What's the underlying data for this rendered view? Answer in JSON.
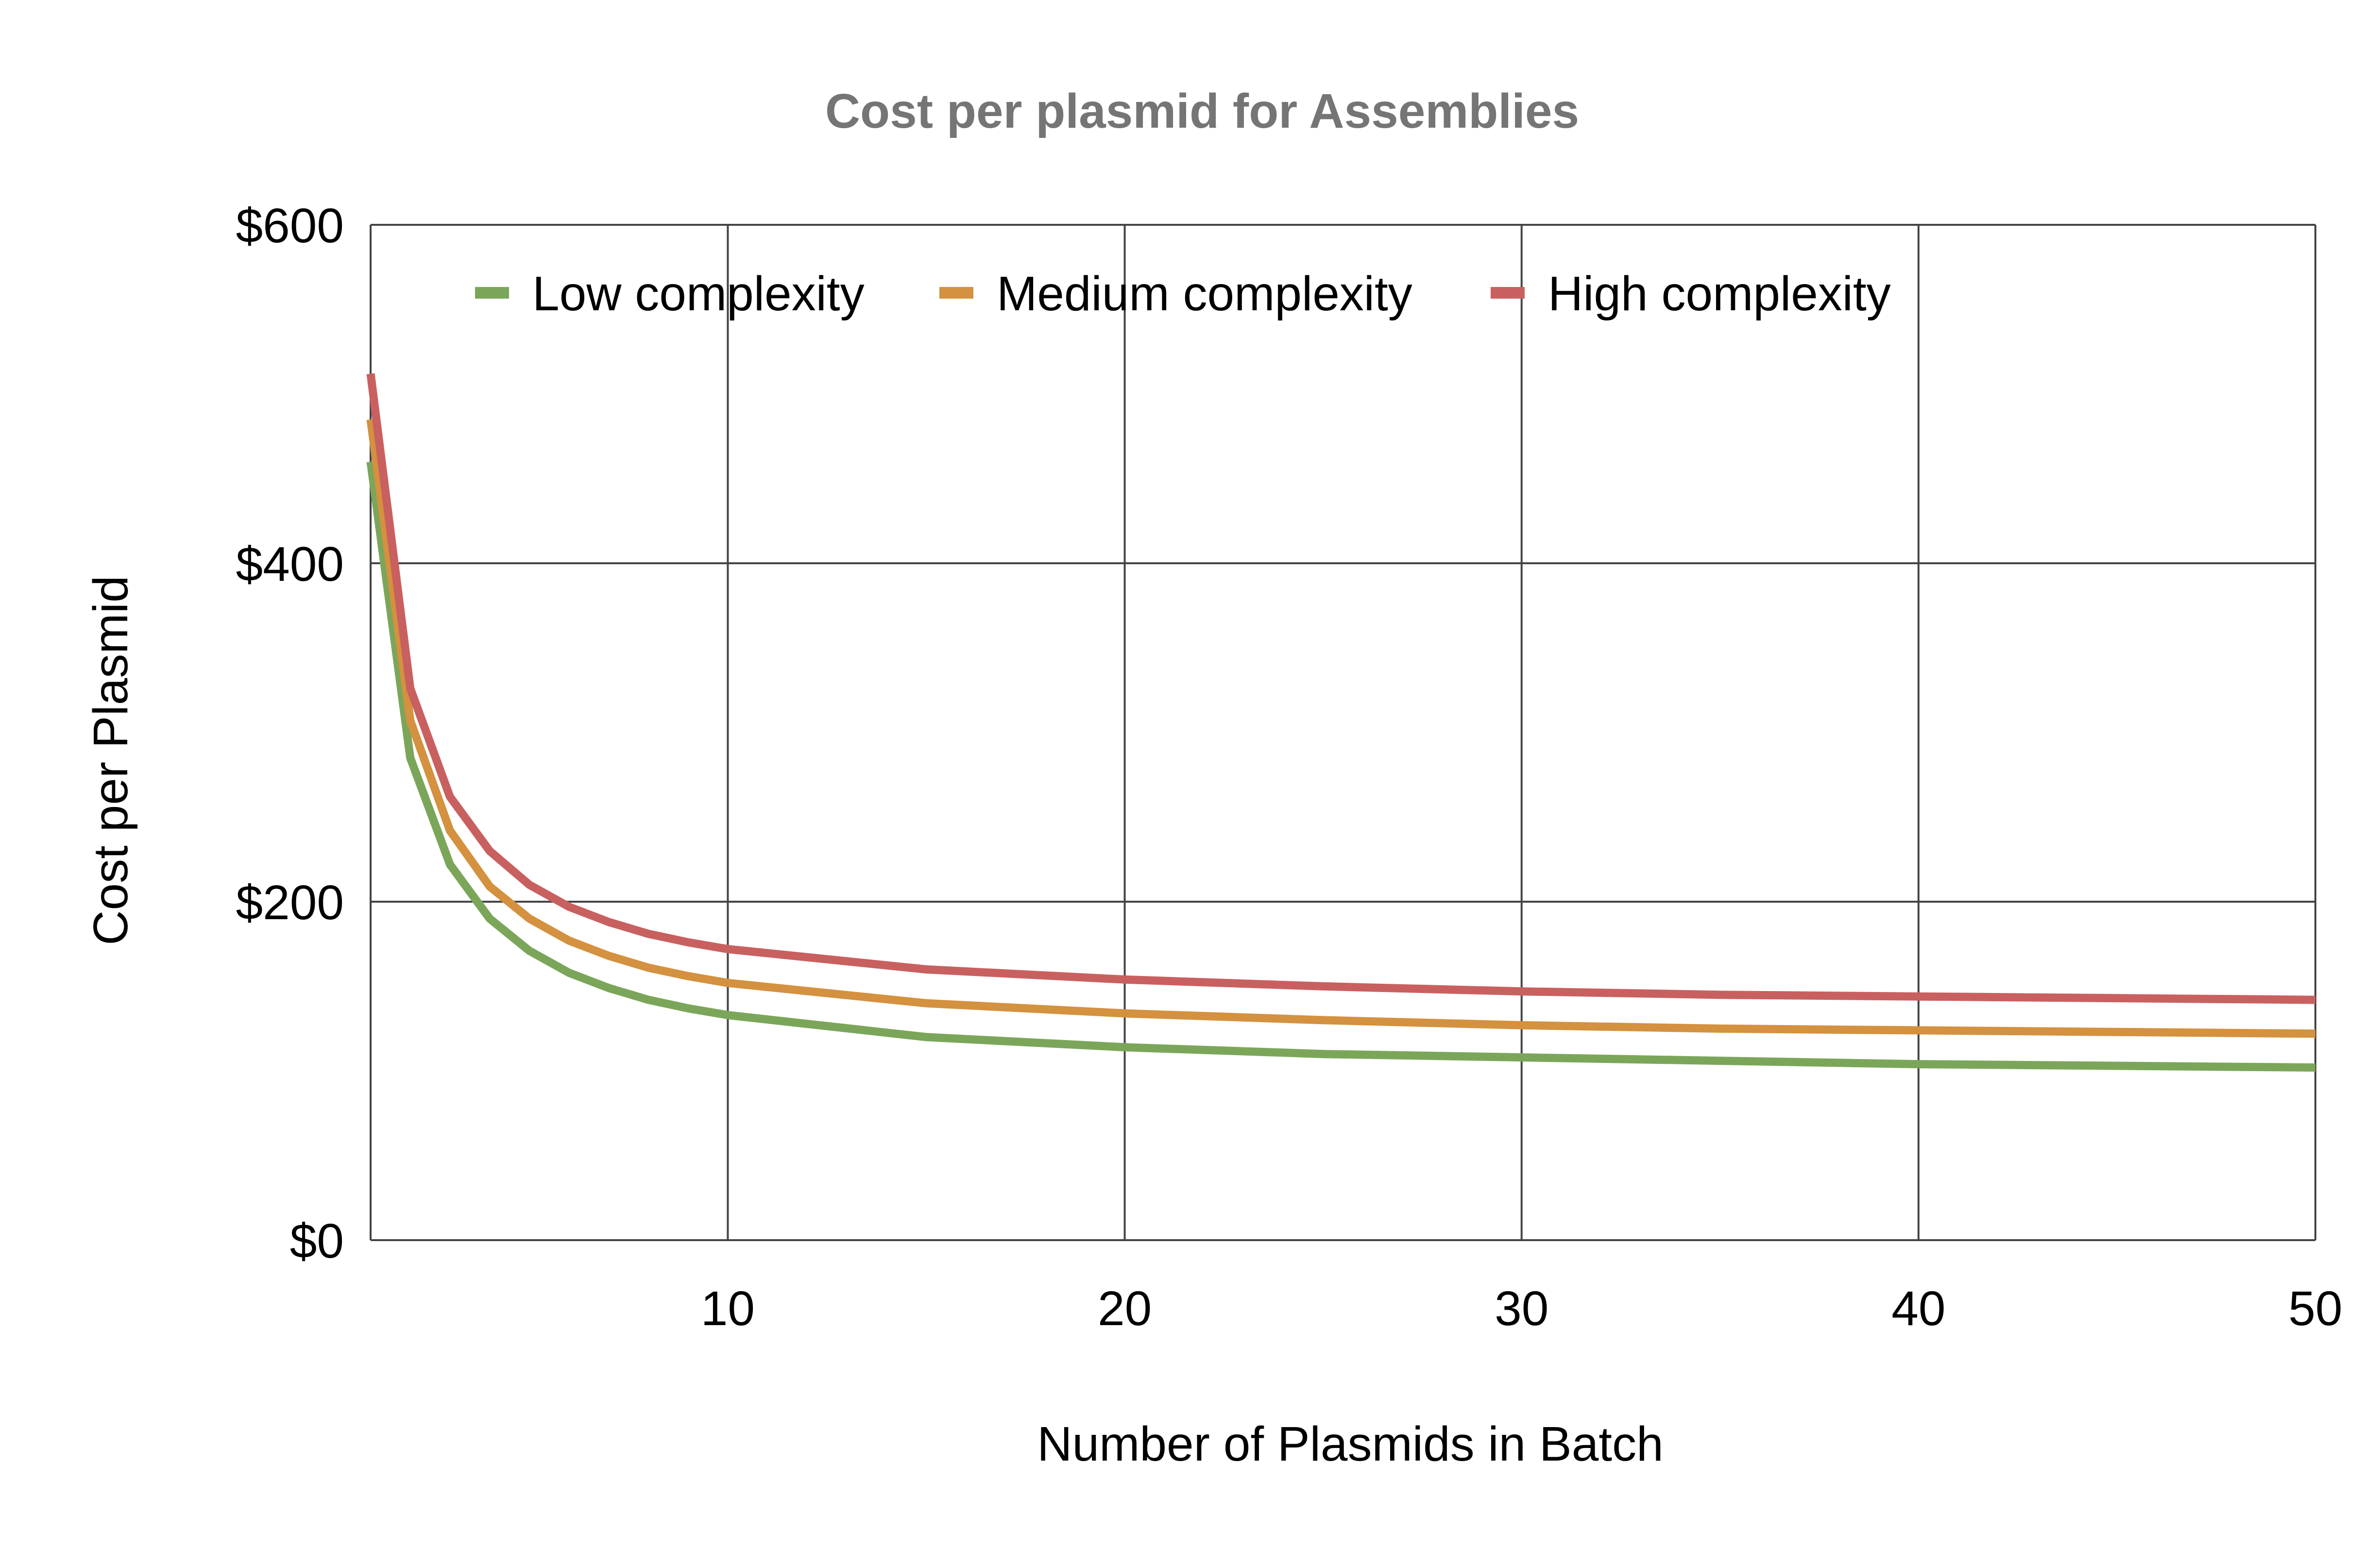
{
  "chart_data": {
    "type": "line",
    "title": "Cost per plasmid for Assemblies",
    "xlabel": "Number of Plasmids in Batch",
    "ylabel": "Cost per Plasmid",
    "xlim": [
      1,
      50
    ],
    "ylim": [
      0,
      600
    ],
    "x_ticks": [
      10,
      20,
      30,
      40,
      50
    ],
    "y_ticks": [
      0,
      200,
      400,
      600
    ],
    "y_tick_labels": [
      "$0",
      "$200",
      "$400",
      "$600"
    ],
    "grid": true,
    "legend_position": "top",
    "x": [
      1,
      2,
      3,
      4,
      5,
      6,
      7,
      8,
      9,
      10,
      15,
      20,
      25,
      30,
      35,
      40,
      45,
      50
    ],
    "series": [
      {
        "name": "Low complexity",
        "color": "#7BA65A",
        "values": [
          460,
          285,
          222,
          190,
          171,
          158,
          149,
          142,
          137,
          133,
          120,
          114,
          110,
          108,
          106,
          104,
          103,
          102
        ]
      },
      {
        "name": "Medium complexity",
        "color": "#D4913F",
        "values": [
          485,
          307,
          242,
          209,
          190,
          177,
          168,
          161,
          156,
          152,
          140,
          134,
          130,
          127,
          125,
          124,
          123,
          122
        ]
      },
      {
        "name": "High complexity",
        "color": "#C96060",
        "values": [
          512,
          326,
          262,
          230,
          210,
          197,
          188,
          181,
          176,
          172,
          160,
          154,
          150,
          147,
          145,
          144,
          143,
          142
        ]
      }
    ]
  }
}
